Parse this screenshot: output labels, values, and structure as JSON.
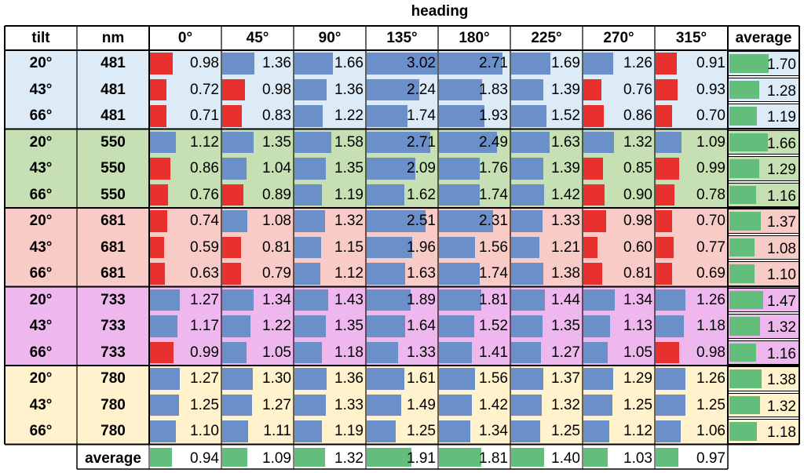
{
  "chart_data": {
    "type": "table",
    "title": "heading",
    "columns": [
      "tilt",
      "nm",
      "0°",
      "45°",
      "90°",
      "135°",
      "180°",
      "225°",
      "270°",
      "315°",
      "average"
    ],
    "headings": [
      "0°",
      "45°",
      "90°",
      "135°",
      "180°",
      "225°",
      "270°",
      "315°"
    ],
    "rows": [
      {
        "tilt": "20°",
        "nm": "481",
        "values": [
          0.98,
          1.36,
          1.66,
          3.02,
          2.71,
          1.69,
          1.26,
          0.91
        ],
        "average": 1.7
      },
      {
        "tilt": "43°",
        "nm": "481",
        "values": [
          0.72,
          0.98,
          1.36,
          2.24,
          1.83,
          1.39,
          0.76,
          0.93
        ],
        "average": 1.28
      },
      {
        "tilt": "66°",
        "nm": "481",
        "values": [
          0.71,
          0.83,
          1.22,
          1.74,
          1.93,
          1.52,
          0.86,
          0.7
        ],
        "average": 1.19
      },
      {
        "tilt": "20°",
        "nm": "550",
        "values": [
          1.12,
          1.35,
          1.58,
          2.71,
          2.49,
          1.63,
          1.32,
          1.09
        ],
        "average": 1.66
      },
      {
        "tilt": "43°",
        "nm": "550",
        "values": [
          0.86,
          1.04,
          1.35,
          2.09,
          1.76,
          1.39,
          0.85,
          0.99
        ],
        "average": 1.29
      },
      {
        "tilt": "66°",
        "nm": "550",
        "values": [
          0.76,
          0.89,
          1.19,
          1.62,
          1.74,
          1.42,
          0.9,
          0.78
        ],
        "average": 1.16
      },
      {
        "tilt": "20°",
        "nm": "681",
        "values": [
          0.74,
          1.08,
          1.32,
          2.51,
          2.31,
          1.33,
          0.98,
          0.7
        ],
        "average": 1.37
      },
      {
        "tilt": "43°",
        "nm": "681",
        "values": [
          0.59,
          0.81,
          1.15,
          1.96,
          1.56,
          1.21,
          0.6,
          0.77
        ],
        "average": 1.08
      },
      {
        "tilt": "66°",
        "nm": "681",
        "values": [
          0.63,
          0.79,
          1.12,
          1.63,
          1.74,
          1.38,
          0.81,
          0.69
        ],
        "average": 1.1
      },
      {
        "tilt": "20°",
        "nm": "733",
        "values": [
          1.27,
          1.34,
          1.43,
          1.89,
          1.81,
          1.44,
          1.34,
          1.26
        ],
        "average": 1.47
      },
      {
        "tilt": "43°",
        "nm": "733",
        "values": [
          1.17,
          1.22,
          1.35,
          1.64,
          1.52,
          1.35,
          1.13,
          1.18
        ],
        "average": 1.32
      },
      {
        "tilt": "66°",
        "nm": "733",
        "values": [
          0.99,
          1.05,
          1.18,
          1.33,
          1.41,
          1.27,
          1.05,
          0.98
        ],
        "average": 1.16
      },
      {
        "tilt": "20°",
        "nm": "780",
        "values": [
          1.27,
          1.3,
          1.36,
          1.61,
          1.56,
          1.37,
          1.29,
          1.26
        ],
        "average": 1.38
      },
      {
        "tilt": "43°",
        "nm": "780",
        "values": [
          1.25,
          1.27,
          1.33,
          1.49,
          1.42,
          1.32,
          1.25,
          1.25
        ],
        "average": 1.32
      },
      {
        "tilt": "66°",
        "nm": "780",
        "values": [
          1.1,
          1.11,
          1.19,
          1.25,
          1.34,
          1.25,
          1.12,
          1.06
        ],
        "average": 1.18
      }
    ],
    "average_row_label": "average",
    "column_averages": [
      0.94,
      1.09,
      1.32,
      1.91,
      1.81,
      1.4,
      1.03,
      0.97
    ],
    "data_bars": {
      "max_value": 3.02,
      "above_one_color": "#6a8fc9",
      "below_one_color": "#e8302f",
      "average_color": "#63be7b"
    },
    "group_colors": {
      "481": "#ddebf7",
      "550": "#c6e0b4",
      "681": "#f8cbc7",
      "733": "#eeb8ee",
      "780": "#fff2cc"
    }
  }
}
